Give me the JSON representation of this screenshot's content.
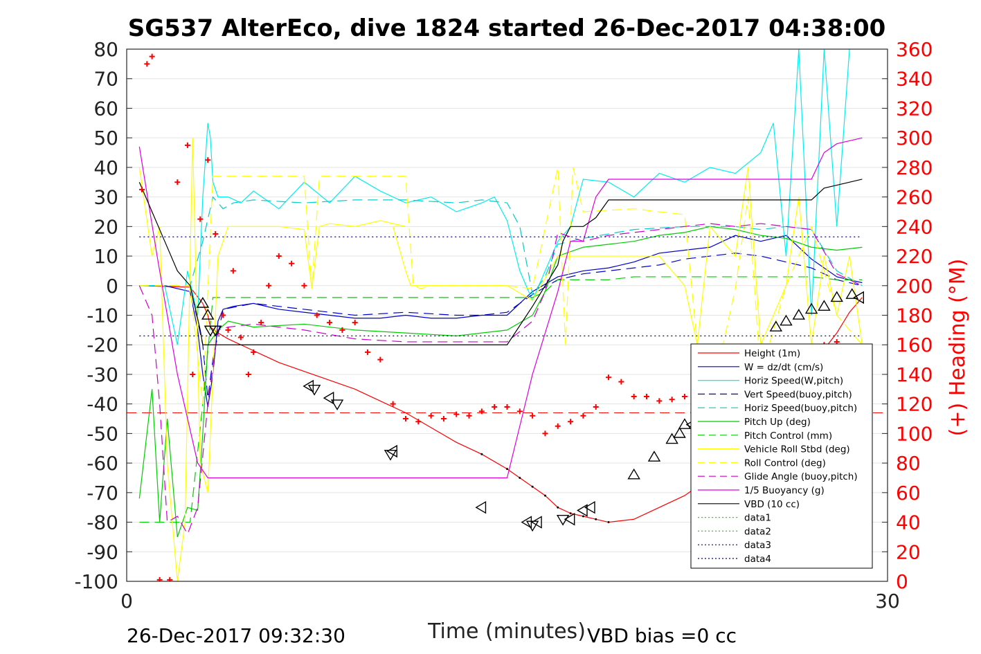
{
  "chart_data": {
    "type": "line",
    "title": "SG537 AlterEco, dive 1824 started 26-Dec-2017 04:38:00",
    "xlabel": "Time (minutes)",
    "ylabel_right": "(+) Heading (°M)",
    "footer_left": "26-Dec-2017 09:32:30",
    "footer_right": "VBD bias =0 cc",
    "xlim": [
      0,
      30
    ],
    "ylim": [
      -100,
      80
    ],
    "ylim_right": [
      0,
      360
    ],
    "x_ticks": [
      "0",
      "30"
    ],
    "y_ticks": [
      "80",
      "70",
      "60",
      "50",
      "40",
      "30",
      "20",
      "10",
      "0",
      "-10",
      "-20",
      "-30",
      "-40",
      "-50",
      "-60",
      "-70",
      "-80",
      "-90",
      "-100"
    ],
    "y_right_ticks": [
      "360",
      "340",
      "320",
      "300",
      "280",
      "260",
      "240",
      "220",
      "200",
      "180",
      "160",
      "140",
      "120",
      "100",
      "80",
      "60",
      "40",
      "20",
      "0"
    ],
    "grid": true,
    "legend_position": "bottom-right",
    "colors": {
      "height": "#ff0000",
      "w": "#0000cc",
      "horiz_w": "#00eeee",
      "vert_buoy": "#0000cc",
      "horiz_buoy": "#00cccc",
      "pitch_up": "#00cc00",
      "pitch_ctrl": "#00cc00",
      "roll": "#ffff00",
      "roll_ctrl": "#ffff00",
      "glide": "#cc00cc",
      "buoy": "#dd00dd",
      "vbd": "#000000",
      "data1": "#33cc33",
      "data2": "#33cc33",
      "data3": "#000080",
      "data4": "#000080",
      "heading": "#ff0000"
    },
    "series": [
      {
        "key": "height",
        "name": "Height (1m)",
        "style": "solid",
        "x": [
          0.5,
          2.5,
          3.0,
          3.2,
          3.3,
          3.6,
          4,
          5,
          6,
          7,
          8,
          9,
          10,
          11,
          12,
          13,
          14,
          15,
          15.5,
          16,
          16.5,
          17,
          17.5,
          18,
          18.5,
          19,
          20,
          21,
          22,
          23,
          24,
          25,
          26,
          27,
          28,
          28.5,
          29
        ],
        "y": [
          0,
          -0.5,
          -6,
          -10,
          -14,
          -16,
          -18,
          -22,
          -26,
          -29,
          -32,
          -35,
          -39,
          -43,
          -48,
          -53,
          -57,
          -62,
          -65,
          -68,
          -71,
          -75,
          -77,
          -78,
          -79,
          -80,
          -79,
          -75,
          -71,
          -65,
          -57,
          -47,
          -38,
          -27,
          -16,
          -9,
          -4
        ]
      },
      {
        "key": "w",
        "name": "W = dz/dt (cm/s)",
        "style": "solid",
        "x": [
          0.5,
          1.5,
          2.5,
          2.8,
          3.0,
          3.2,
          3.4,
          3.6,
          3.8,
          4.2,
          5,
          6,
          7,
          8,
          9,
          10,
          11,
          12,
          13,
          14,
          15,
          16,
          17,
          17.5,
          18,
          19,
          20,
          21,
          22,
          23,
          24,
          25,
          26,
          27,
          28,
          29
        ],
        "y": [
          0,
          0,
          -2,
          -15,
          -30,
          -41,
          -30,
          -12,
          -8,
          -7,
          -6,
          -8,
          -9,
          -10,
          -11,
          -11,
          -10,
          -11,
          -11,
          -10,
          -10,
          -2,
          3,
          4,
          5,
          6,
          8,
          11,
          12,
          13,
          17,
          15,
          17,
          9,
          3,
          1
        ]
      },
      {
        "key": "horiz_w",
        "name": "Horiz Speed(W,pitch)",
        "style": "solid",
        "x": [
          0.5,
          1.5,
          2.0,
          2.4,
          2.8,
          3.0,
          3.2,
          3.3,
          3.4,
          3.6,
          3.8,
          4.0,
          4.5,
          5,
          6,
          7,
          8,
          9,
          10,
          11,
          12,
          13,
          14,
          14.5,
          15,
          15.5,
          16,
          16.5,
          17,
          17.5,
          18,
          19,
          20,
          21,
          22,
          23,
          24,
          25,
          25.5,
          26,
          26.5,
          27,
          27.5,
          28,
          28.5
        ],
        "y": [
          0,
          0,
          -20,
          5,
          -10,
          30,
          55,
          50,
          35,
          30,
          30,
          30,
          28,
          32,
          26,
          35,
          28,
          37,
          32,
          28,
          30,
          25,
          28,
          30,
          22,
          5,
          -5,
          5,
          15,
          20,
          36,
          35,
          30,
          38,
          35,
          40,
          38,
          45,
          55,
          10,
          80,
          -10,
          80,
          20,
          80
        ]
      },
      {
        "key": "vert_buoy",
        "name": "Vert Speed(buoy,pitch)",
        "style": "dashed",
        "x": [
          0.5,
          2.5,
          3.0,
          3.2,
          3.4,
          3.8,
          5,
          7,
          9,
          11,
          13,
          14,
          15,
          16,
          17,
          18,
          19,
          20,
          21,
          22,
          23,
          24,
          25,
          26,
          27,
          28,
          29
        ],
        "y": [
          0,
          0,
          -20,
          -38,
          -25,
          -8,
          -6,
          -8,
          -10,
          -9,
          -10,
          -10,
          -9,
          -3,
          2,
          4,
          5,
          6,
          7,
          9,
          10,
          11,
          10,
          8,
          6,
          2,
          0
        ]
      },
      {
        "key": "horiz_buoy",
        "name": "Horiz Speed(buoy,pitch)",
        "style": "dashed",
        "x": [
          0.5,
          2.5,
          3.0,
          3.4,
          3.8,
          4.2,
          5,
          7,
          9,
          11,
          13,
          14,
          15,
          15.5,
          16,
          16.5,
          17,
          17.5,
          18,
          20,
          22,
          24,
          25,
          26,
          27,
          28,
          29
        ],
        "y": [
          0,
          0,
          15,
          30,
          26,
          28,
          29,
          28,
          29,
          29,
          28,
          29,
          28,
          20,
          -3,
          3,
          14,
          15,
          16,
          19,
          20,
          20,
          19,
          20,
          19,
          5,
          0
        ]
      },
      {
        "key": "pitch_up",
        "name": "Pitch Up (deg)",
        "style": "solid",
        "x": [
          0.5,
          1.0,
          1.3,
          1.6,
          2.0,
          2.4,
          2.8,
          3.0,
          3.2,
          3.6,
          4,
          5,
          7,
          9,
          11,
          13,
          14,
          15,
          16,
          16.5,
          17,
          18,
          19,
          20,
          21,
          22,
          23,
          24,
          25,
          26,
          27,
          28,
          29
        ],
        "y": [
          -72,
          -35,
          -80,
          -45,
          -85,
          -75,
          -76,
          -50,
          -20,
          -15,
          -12,
          -14,
          -13,
          -15,
          -16,
          -17,
          -16,
          -15,
          -10,
          -2,
          10,
          13,
          14,
          15,
          17,
          18,
          20,
          19,
          17,
          16,
          13,
          12,
          13
        ]
      },
      {
        "key": "pitch_ctrl",
        "name": "Pitch Control (mm)",
        "style": "dashed",
        "x": [
          0.5,
          2.5,
          3.0,
          3.4,
          3.8,
          14,
          15,
          16,
          16.5,
          17,
          18,
          19,
          20,
          21,
          22,
          23,
          24,
          25,
          26,
          27,
          28,
          29
        ],
        "y": [
          -80,
          -80,
          -40,
          -4,
          -4,
          -4,
          -4,
          -4,
          -2,
          2,
          2,
          2,
          3,
          3,
          3,
          3,
          3,
          3,
          3,
          3,
          2,
          2
        ]
      },
      {
        "key": "roll",
        "name": "Vehicle Roll Stbd (deg)",
        "style": "solid",
        "x": [
          0.5,
          1.0,
          1.3,
          1.6,
          2.0,
          2.3,
          2.6,
          2.9,
          3.2,
          3.6,
          4,
          5,
          6,
          7,
          7.3,
          7.6,
          8,
          9,
          10,
          11,
          10.5,
          11,
          11.2,
          11.5,
          12,
          14,
          15,
          16,
          17,
          18,
          19,
          20,
          21,
          22,
          22.5,
          23,
          24,
          24.5,
          25,
          26,
          26.5,
          27,
          27.5,
          28,
          28.5,
          29
        ],
        "y": [
          40,
          10,
          20,
          -60,
          -100,
          -80,
          50,
          -60,
          -70,
          10,
          20,
          20,
          20,
          19,
          -1,
          20,
          21,
          20,
          22,
          20,
          20,
          5,
          0,
          0,
          0,
          0,
          0,
          -5,
          10,
          10,
          10,
          10,
          10,
          0,
          -20,
          20,
          10,
          40,
          -20,
          0,
          30,
          -20,
          10,
          -10,
          10,
          -20
        ]
      },
      {
        "key": "roll_ctrl",
        "name": "Roll Control (deg)",
        "style": "dashed",
        "x": [
          0.5,
          2.5,
          3.0,
          3.4,
          3.8,
          7,
          7.3,
          7.6,
          8,
          10,
          11,
          11.3,
          11.6,
          12,
          15,
          16,
          17,
          17.3,
          17.6,
          18,
          20,
          22,
          22.5,
          23,
          24,
          24.5,
          25,
          26,
          27,
          28,
          29
        ],
        "y": [
          0,
          0,
          -40,
          37,
          37,
          37,
          -1,
          37,
          37,
          37,
          37,
          0,
          -1,
          0,
          0,
          -1,
          40,
          -20,
          40,
          25,
          26,
          24,
          -20,
          -40,
          -1,
          30,
          -30,
          0,
          20,
          -10,
          -20
        ]
      },
      {
        "key": "glide",
        "name": "Glide Angle (buoy,pitch)",
        "style": "dashed",
        "x": [
          0.5,
          1.0,
          1.3,
          1.6,
          2.0,
          2.4,
          2.8,
          3.2,
          3.6,
          4,
          5,
          7,
          9,
          11,
          13,
          15,
          16,
          16.5,
          17,
          18,
          19,
          20,
          21,
          22,
          23,
          24,
          25,
          26,
          27,
          28,
          29
        ],
        "y": [
          0,
          -10,
          -40,
          -80,
          -78,
          -84,
          -75,
          -40,
          -15,
          -14,
          -13,
          -15,
          -18,
          -19,
          -19,
          -19,
          -12,
          -2,
          18,
          15,
          17,
          18,
          19,
          20,
          21,
          20,
          21,
          20,
          19,
          4,
          0
        ]
      },
      {
        "key": "buoy",
        "name": "1/5 Buoyancy (g)",
        "style": "solid",
        "x": [
          0.5,
          1.2,
          2.0,
          2.8,
          3.2,
          3.6,
          5,
          8,
          11,
          14,
          15,
          16,
          17,
          17.5,
          18,
          18.5,
          19,
          20,
          22,
          24,
          26,
          27,
          27.5,
          28,
          29
        ],
        "y": [
          47,
          10,
          -30,
          -60,
          -65,
          -65,
          -65,
          -65,
          -65,
          -65,
          -65,
          -30,
          -2,
          15,
          15,
          30,
          36,
          36,
          36,
          36,
          36,
          36,
          45,
          48,
          50
        ]
      },
      {
        "key": "vbd",
        "name": "VBD (10 cc)",
        "style": "solid",
        "x": [
          0.5,
          1.0,
          1.5,
          2.0,
          2.5,
          2.9,
          3.0,
          14,
          15,
          16,
          16.5,
          17,
          17.2,
          17.5,
          18,
          18.5,
          19,
          20,
          22,
          24,
          26,
          27,
          27.5,
          28,
          29
        ],
        "y": [
          35,
          25,
          15,
          5,
          0,
          -15,
          -20,
          -20,
          -20,
          -7,
          0,
          7,
          15,
          20,
          20,
          23,
          29,
          29,
          29,
          29,
          29,
          29,
          33,
          34,
          36
        ]
      },
      {
        "key": "data1",
        "name": "data1",
        "style": "dotted",
        "x": [],
        "y": []
      },
      {
        "key": "data2",
        "name": "data2",
        "style": "dotted",
        "x": [],
        "y": []
      },
      {
        "key": "data3",
        "name": "data3",
        "style": "dotted",
        "x": [
          0.5,
          29
        ],
        "y": [
          16.5,
          16.5
        ]
      },
      {
        "key": "data4",
        "name": "data4",
        "style": "dotted",
        "x": [
          0.5,
          29
        ],
        "y": [
          -17,
          -17
        ]
      }
    ],
    "hlines": [
      {
        "y": -43,
        "style": "dashed",
        "color": "#ff0000"
      }
    ],
    "heading_points": {
      "x": [
        0.6,
        0.8,
        1.0,
        1.3,
        1.7,
        2.0,
        2.4,
        2.6,
        2.9,
        3.2,
        3.5,
        3.8,
        4.0,
        4.2,
        4.5,
        4.8,
        5.0,
        5.3,
        5.6,
        6.0,
        6.5,
        7.0,
        7.5,
        8.0,
        8.5,
        9.0,
        9.5,
        10.0,
        10.5,
        11.0,
        11.5,
        12.0,
        12.5,
        13.0,
        13.5,
        14.0,
        14.5,
        15.0,
        15.5,
        16.0,
        16.5,
        17.0,
        17.5,
        18.0,
        18.5,
        19.0,
        19.5,
        20.0,
        20.5,
        21.0,
        21.5,
        22.0,
        22.5,
        23.0,
        23.5,
        24.0,
        24.5,
        25.0,
        25.5,
        26.0,
        26.5,
        27.0,
        27.5,
        28.0
      ],
      "y": [
        265,
        350,
        355,
        1,
        1,
        270,
        295,
        140,
        245,
        285,
        235,
        180,
        170,
        210,
        165,
        140,
        155,
        175,
        200,
        220,
        215,
        200,
        180,
        175,
        170,
        175,
        155,
        150,
        120,
        110,
        108,
        112,
        110,
        113,
        112,
        115,
        118,
        118,
        115,
        112,
        100,
        105,
        108,
        112,
        118,
        138,
        135,
        125,
        125,
        122,
        123,
        125,
        120,
        118,
        120,
        110,
        108,
        105,
        110,
        130,
        150,
        155,
        160,
        162
      ]
    },
    "markers": {
      "up_triangles": [
        [
          3.0,
          -6
        ],
        [
          3.2,
          -10
        ],
        [
          20.0,
          -64
        ],
        [
          20.8,
          -58
        ],
        [
          21.5,
          -52
        ],
        [
          21.8,
          -50
        ],
        [
          22.0,
          -47
        ],
        [
          22.5,
          -43
        ],
        [
          23.2,
          -33
        ],
        [
          25.6,
          -14
        ],
        [
          26.0,
          -12
        ],
        [
          26.5,
          -10
        ],
        [
          27.0,
          -8
        ],
        [
          27.5,
          -7
        ],
        [
          28.0,
          -4
        ],
        [
          28.6,
          -3
        ]
      ],
      "left_triangles": [
        [
          7.2,
          -34
        ],
        [
          8.0,
          -38
        ],
        [
          10.5,
          -56
        ],
        [
          14.0,
          -75
        ],
        [
          15.8,
          -80
        ],
        [
          16.2,
          -80
        ],
        [
          17.5,
          -79
        ],
        [
          18.0,
          -76
        ],
        [
          18.3,
          -75
        ],
        [
          22.3,
          -47
        ],
        [
          28.9,
          -4
        ]
      ],
      "down_triangles": [
        [
          3.3,
          -15
        ],
        [
          3.5,
          -15
        ],
        [
          7.4,
          -35
        ],
        [
          8.3,
          -40
        ],
        [
          10.4,
          -57
        ],
        [
          16.0,
          -81
        ],
        [
          17.2,
          -79
        ]
      ]
    }
  }
}
